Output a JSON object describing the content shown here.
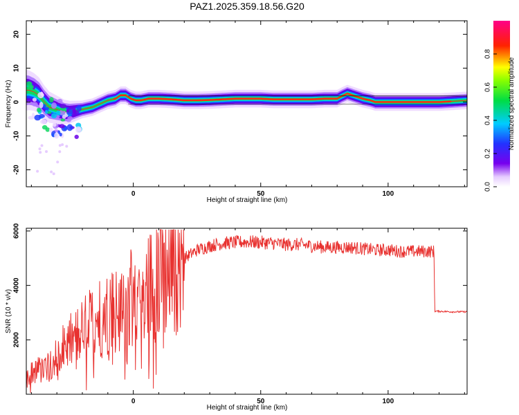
{
  "figure": {
    "title": "PAZ1.2025.359.18.56.G20"
  },
  "chart_data": [
    {
      "type": "heatmap",
      "xlabel": "Height of straight line (km)",
      "ylabel": "Frequency (Hz)",
      "xlim": [
        -42,
        131
      ],
      "ylim": [
        -25,
        24
      ],
      "xticks": [
        0,
        50,
        100
      ],
      "yticks": [
        -20,
        -10,
        0,
        10,
        20
      ],
      "colorbar": {
        "label": "Normalized spectral amplitude",
        "range": [
          0,
          1
        ],
        "ticks": [
          "0.0",
          "0.2",
          "0.4",
          "0.6",
          "0.8"
        ],
        "colormap": "rainbow (purple-blue-cyan-green-yellow-red-magenta)"
      },
      "ridge": {
        "description": "dominant frequency track",
        "x": [
          -41,
          -39,
          -37,
          -35,
          -33,
          -31,
          -29,
          -27,
          -25,
          -22,
          -19,
          -16,
          -13,
          -10,
          -7,
          -5,
          -3,
          -1,
          1,
          3,
          6,
          10,
          15,
          20,
          25,
          30,
          35,
          40,
          45,
          50,
          55,
          60,
          65,
          70,
          75,
          80,
          82,
          84,
          86,
          88,
          90,
          93,
          95,
          100,
          110,
          120,
          125,
          131
        ],
        "y": [
          3.5,
          3.0,
          2.0,
          0.0,
          -1.5,
          -2.0,
          -2.5,
          -3.0,
          -3.0,
          -2.5,
          -2.0,
          -1.5,
          -0.5,
          0.5,
          1.0,
          2.0,
          2.0,
          1.0,
          0.5,
          0.5,
          1.0,
          1.0,
          0.8,
          0.5,
          0.5,
          0.6,
          0.8,
          1.0,
          1.0,
          1.0,
          0.8,
          0.8,
          0.8,
          0.8,
          1.0,
          1.0,
          1.8,
          2.5,
          2.0,
          1.5,
          1.0,
          0.5,
          0.0,
          0.0,
          0.0,
          0.0,
          0.2,
          0.5
        ]
      }
    },
    {
      "type": "line",
      "xlabel": "Height of straight line (km)",
      "ylabel": "SNR (10 * v/v)",
      "xlim": [
        -42,
        131
      ],
      "ylim": [
        0,
        6100
      ],
      "xticks": [
        0,
        50,
        100
      ],
      "yticks": [
        2000,
        4000,
        6000
      ],
      "series": [
        {
          "color": "#e8312f",
          "envelope_x": [
            -42,
            -35,
            -30,
            -25,
            -20,
            -15,
            -10,
            -5,
            0,
            5,
            10,
            15,
            20,
            25,
            30,
            35,
            40,
            45,
            50,
            55,
            60,
            65,
            70,
            75,
            80,
            85,
            90,
            95,
            100,
            105,
            110,
            115,
            118,
            118.3,
            120,
            125,
            131
          ],
          "envelope_y": [
            700,
            1000,
            1400,
            1900,
            2300,
            2700,
            3000,
            3200,
            3500,
            3900,
            4300,
            4700,
            5000,
            5300,
            5450,
            5550,
            5580,
            5600,
            5580,
            5550,
            5500,
            5500,
            5450,
            5400,
            5400,
            5400,
            5350,
            5300,
            5300,
            5250,
            5250,
            5250,
            5250,
            3050,
            3050,
            3030,
            3030
          ]
        }
      ]
    }
  ]
}
